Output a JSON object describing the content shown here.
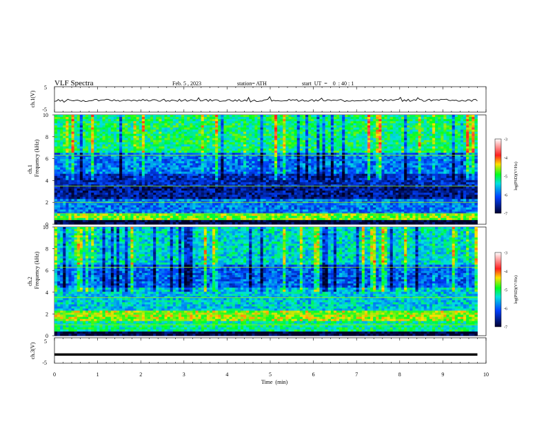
{
  "header": {
    "title": "VLF  Spectra",
    "date": "Feb. 5  , 2023",
    "station": "station= ATH",
    "start": "start  UT  =    0  : 40 : 1"
  },
  "chart_data": [
    {
      "type": "line",
      "panel": "ch1-waveform",
      "ylabel": "ch.1(V)",
      "xlim": [
        0,
        10
      ],
      "ylim": [
        -5,
        5
      ],
      "yticks": [
        "5",
        "-5"
      ],
      "waveform_range_approx": [
        -1.5,
        0.8
      ],
      "points": 220
    },
    {
      "type": "heatmap",
      "panel": "ch1-spectrogram",
      "ylabel_top": "ch.1",
      "ylabel": "Frequency  (kHz)",
      "xlim": [
        0,
        9.8
      ],
      "ylim": [
        0,
        10
      ],
      "yticks": [
        "0",
        "2",
        "4",
        "6",
        "8",
        "10"
      ],
      "colorbar": {
        "label": "log(PSD)(V²/Hz)",
        "range": [
          -7,
          -3
        ],
        "ticks": [
          "-3",
          "-4",
          "-5",
          "-6",
          "-7"
        ]
      },
      "bands_kHz_log_psd": [
        {
          "from": 0.0,
          "to": 0.4,
          "level": -7.0
        },
        {
          "from": 0.4,
          "to": 1.0,
          "level": -4.7
        },
        {
          "from": 1.0,
          "to": 2.3,
          "level": -5.9
        },
        {
          "from": 2.3,
          "to": 3.4,
          "level": -6.6
        },
        {
          "from": 3.4,
          "to": 4.6,
          "level": -6.4
        },
        {
          "from": 4.6,
          "to": 6.5,
          "level": -5.9
        },
        {
          "from": 6.5,
          "to": 10.0,
          "level": -5.1
        }
      ]
    },
    {
      "type": "heatmap",
      "panel": "ch2-spectrogram",
      "ylabel_top": "ch.2",
      "ylabel": "Frequency  (kHz)",
      "xlim": [
        0,
        9.8
      ],
      "ylim": [
        0,
        10
      ],
      "yticks": [
        "0",
        "2",
        "4",
        "6",
        "8",
        "10"
      ],
      "colorbar": {
        "label": "log(PSD)(V²/Hz)",
        "range": [
          -7,
          -3
        ],
        "ticks": [
          "-3",
          "-4",
          "-5",
          "-6",
          "-7"
        ]
      },
      "bands_kHz_log_psd": [
        {
          "from": 0.0,
          "to": 0.4,
          "level": -7.0
        },
        {
          "from": 0.4,
          "to": 1.3,
          "level": -5.2
        },
        {
          "from": 1.3,
          "to": 2.3,
          "level": -4.6
        },
        {
          "from": 2.3,
          "to": 4.5,
          "level": -5.5
        },
        {
          "from": 4.5,
          "to": 6.5,
          "level": -6.0
        },
        {
          "from": 6.5,
          "to": 10.0,
          "level": -5.4
        }
      ]
    },
    {
      "type": "line",
      "panel": "ch3-waveform",
      "ylabel": "ch.3(V)",
      "xlabel": "Time  (min)",
      "xlim": [
        0,
        10
      ],
      "xticks": [
        "0",
        "1",
        "2",
        "3",
        "4",
        "5",
        "6",
        "7",
        "8",
        "9",
        "10"
      ],
      "ylim": [
        -5,
        5
      ],
      "yticks": [
        "5",
        "-5"
      ],
      "constant_value": -1.6
    }
  ]
}
